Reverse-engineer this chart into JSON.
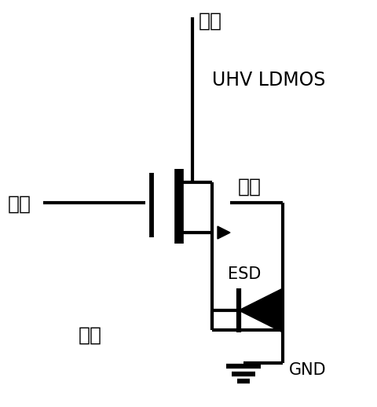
{
  "title": "UHV LDMOS",
  "label_drain": "漏端",
  "label_gate": "栅端",
  "label_source": "源端",
  "label_body": "体端",
  "label_esd": "ESD",
  "label_gnd": "GND",
  "bg_color": "#ffffff",
  "line_color": "#000000",
  "line_width": 3.0,
  "figsize": [
    4.8,
    5.18
  ],
  "dpi": 100
}
